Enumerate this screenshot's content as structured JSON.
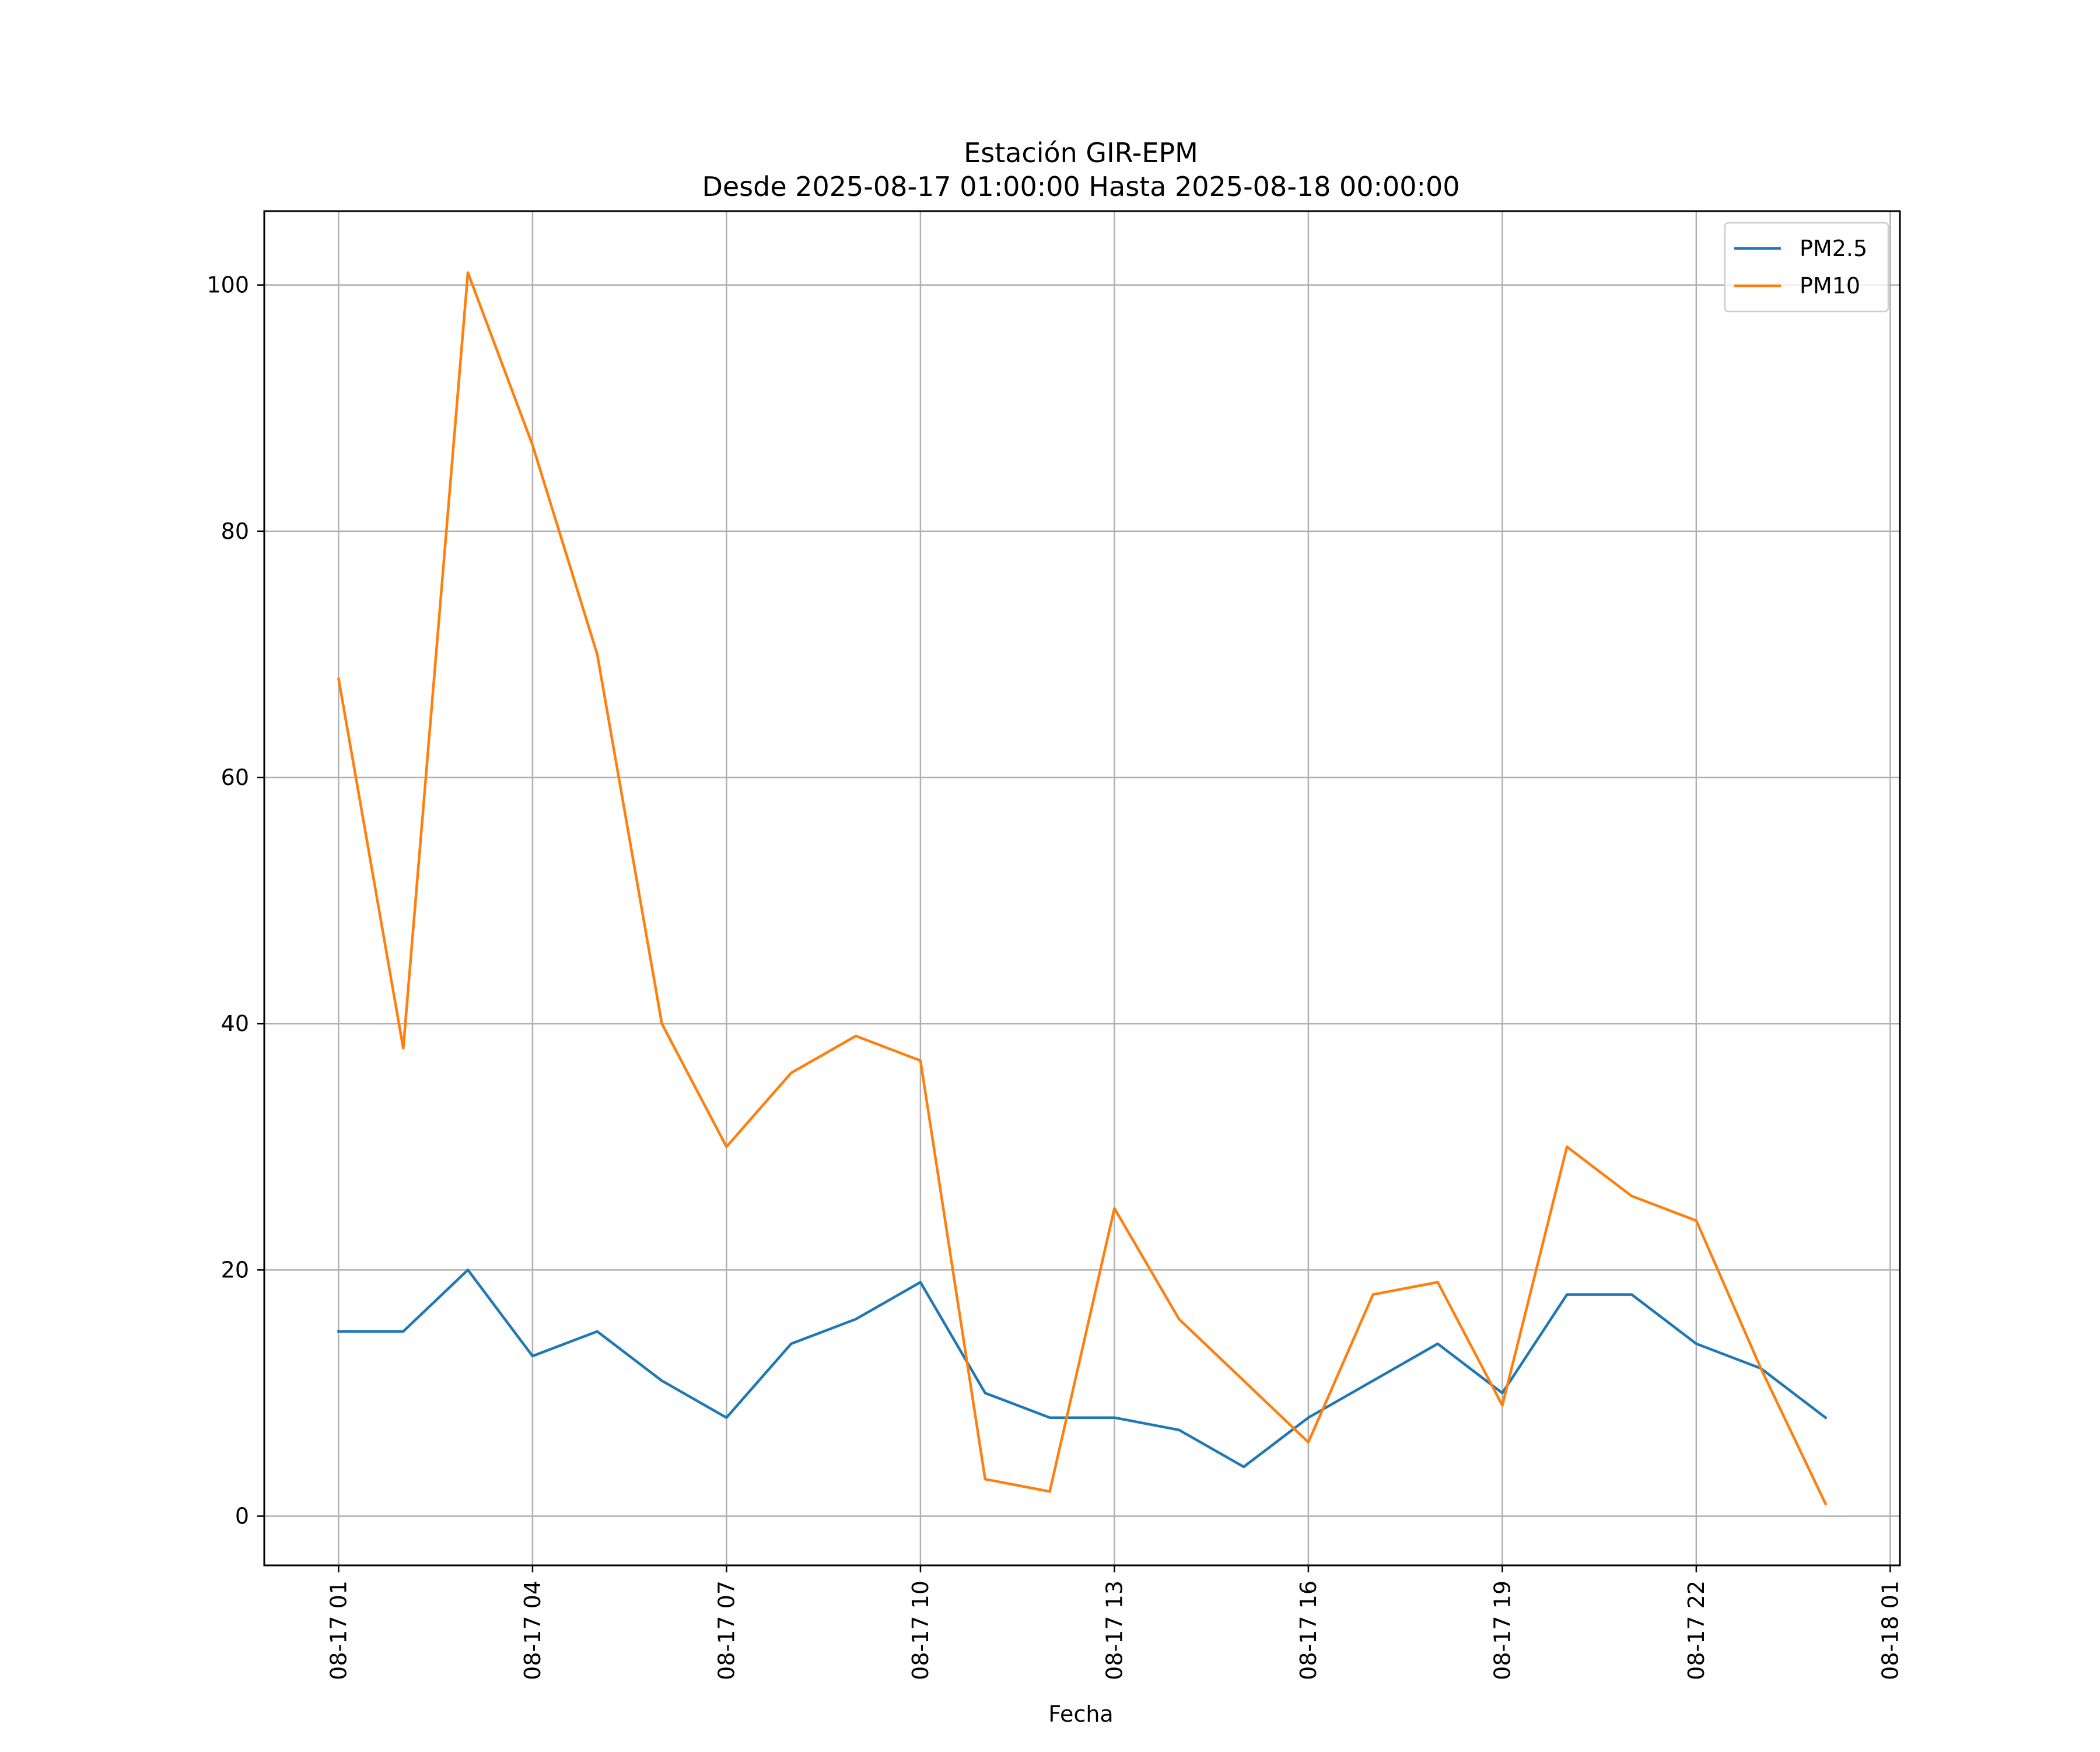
{
  "chart_data": {
    "type": "line",
    "title": "Estación GIR-EPM",
    "subtitle": "Desde 2025-08-17 01:00:00 Hasta 2025-08-18 00:00:00",
    "xlabel": "Fecha",
    "ylabel": "",
    "x": [
      "2025-08-17 01:00",
      "2025-08-17 02:00",
      "2025-08-17 03:00",
      "2025-08-17 04:00",
      "2025-08-17 05:00",
      "2025-08-17 06:00",
      "2025-08-17 07:00",
      "2025-08-17 08:00",
      "2025-08-17 09:00",
      "2025-08-17 10:00",
      "2025-08-17 11:00",
      "2025-08-17 12:00",
      "2025-08-17 13:00",
      "2025-08-17 14:00",
      "2025-08-17 15:00",
      "2025-08-17 16:00",
      "2025-08-17 17:00",
      "2025-08-17 18:00",
      "2025-08-17 19:00",
      "2025-08-17 20:00",
      "2025-08-17 21:00",
      "2025-08-17 22:00",
      "2025-08-17 23:00",
      "2025-08-18 00:00"
    ],
    "xlim": [
      "2025-08-16 23:51",
      "2025-08-18 01:09"
    ],
    "ylim": [
      -4,
      106
    ],
    "x_ticks": [
      {
        "value": "2025-08-17 01:00",
        "label": "08-17 01"
      },
      {
        "value": "2025-08-17 04:00",
        "label": "08-17 04"
      },
      {
        "value": "2025-08-17 07:00",
        "label": "08-17 07"
      },
      {
        "value": "2025-08-17 10:00",
        "label": "08-17 10"
      },
      {
        "value": "2025-08-17 13:00",
        "label": "08-17 13"
      },
      {
        "value": "2025-08-17 16:00",
        "label": "08-17 16"
      },
      {
        "value": "2025-08-17 19:00",
        "label": "08-17 19"
      },
      {
        "value": "2025-08-17 22:00",
        "label": "08-17 22"
      },
      {
        "value": "2025-08-18 01:00",
        "label": "08-18 01"
      }
    ],
    "y_ticks": [
      0,
      20,
      40,
      60,
      80,
      100
    ],
    "grid": true,
    "legend_position": "top-right",
    "series": [
      {
        "name": "PM2.5",
        "color": "#1f77b4",
        "values": [
          15,
          15,
          20,
          13,
          15,
          11,
          8,
          14,
          16,
          19,
          10,
          8,
          8,
          7,
          4,
          8,
          11,
          14,
          10,
          18,
          18,
          14,
          12,
          8
        ]
      },
      {
        "name": "PM10",
        "color": "#ff7f0e",
        "values": [
          68,
          38,
          101,
          87,
          70,
          40,
          30,
          36,
          39,
          37,
          3,
          2,
          25,
          16,
          11,
          6,
          18,
          19,
          9,
          30,
          26,
          24,
          12,
          1
        ]
      }
    ]
  }
}
